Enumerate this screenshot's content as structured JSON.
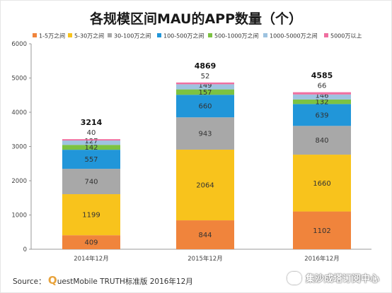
{
  "title": "各规模区间MAU的APP数量（个）",
  "footer": {
    "source_prefix": "Source：",
    "source_q": "Q",
    "source_rest": "uestMobile TRUTH标准版 2016年12月"
  },
  "watermark": "集沙成塔订阅中心",
  "colors": {
    "1-5万之间": "#f0843c",
    "5-30万之间": "#f8c31c",
    "30-100万之间": "#a8a8a8",
    "100-500万之间": "#2196d9",
    "500-1000万之间": "#7cc242",
    "1000-5000万之间": "#9ec3e0",
    "5000万以上": "#ef6fa0"
  },
  "chart_data": {
    "type": "bar",
    "stacked": true,
    "title": "各规模区间MAU的APP数量（个）",
    "categories": [
      "2014年12月",
      "2015年12月",
      "2016年12月"
    ],
    "ylim": [
      0,
      6000
    ],
    "yticks": [
      0,
      1000,
      2000,
      3000,
      4000,
      5000,
      6000
    ],
    "legend_position": "top",
    "series": [
      {
        "name": "1-5万之间",
        "values": [
          409,
          844,
          1102
        ]
      },
      {
        "name": "5-30万之间",
        "values": [
          1199,
          2064,
          1660
        ]
      },
      {
        "name": "30-100万之间",
        "values": [
          740,
          943,
          840
        ]
      },
      {
        "name": "100-500万之间",
        "values": [
          557,
          660,
          639
        ]
      },
      {
        "name": "500-1000万之间",
        "values": [
          142,
          157,
          132
        ]
      },
      {
        "name": "1000-5000万之间",
        "values": [
          127,
          149,
          146
        ]
      },
      {
        "name": "5000万以上",
        "values": [
          40,
          52,
          66
        ]
      }
    ],
    "totals": [
      3214,
      4869,
      4585
    ]
  }
}
